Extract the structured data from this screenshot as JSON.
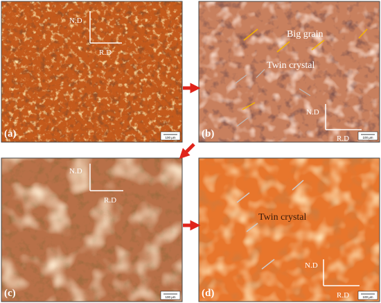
{
  "panels": [
    {
      "label": "(a)",
      "axis_labels": [
        "N.D",
        "R.D"
      ],
      "scale_bar": "100 μm"
    },
    {
      "label": "(b)",
      "axis_labels": [
        "N.D",
        "R.D"
      ],
      "annotations": [
        "Big grain",
        "Twin crystal"
      ],
      "scale_bar": "100 μm"
    },
    {
      "label": "(c)",
      "axis_labels": [
        "N.D",
        "R.D"
      ],
      "scale_bar": "100 μm"
    },
    {
      "label": "(d)",
      "axis_labels": [
        "N.D",
        "R.D"
      ],
      "annotations": [
        "Twin crystal"
      ],
      "scale_bar": "100 μm"
    }
  ]
}
